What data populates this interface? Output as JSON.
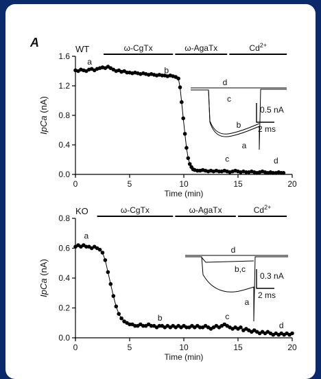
{
  "panel_letter": "A",
  "chart_data": [
    {
      "type": "scatter",
      "genotype": "WT",
      "xlabel": "Time (min)",
      "ylabel_main": "IpCa",
      "ylabel_unit": " (nA)",
      "xlim": [
        0,
        20
      ],
      "ylim": [
        0,
        1.6
      ],
      "xticks": [
        0,
        5,
        10,
        15,
        20
      ],
      "yticks": [
        0.0,
        0.4,
        0.8,
        1.2,
        1.6
      ],
      "ytick_labels": [
        "0.0",
        "0.4",
        "0.8",
        "1.2",
        "1.6"
      ],
      "treatments": [
        {
          "label": "ω-CgTx",
          "start": 2.6,
          "end": 9.0
        },
        {
          "label": "ω-AgaTx",
          "start": 9.2,
          "end": 14.0
        },
        {
          "label": "Cd",
          "sup": "2+",
          "start": 14.2,
          "end": 19.5
        }
      ],
      "annotations": [
        {
          "text": "a",
          "x": 1.3,
          "y": 1.49
        },
        {
          "text": "b",
          "x": 8.4,
          "y": 1.37
        },
        {
          "text": "c",
          "x": 14.0,
          "y": 0.17
        },
        {
          "text": "d",
          "x": 18.5,
          "y": 0.15
        }
      ],
      "x": [
        0,
        0.25,
        0.5,
        0.75,
        1,
        1.25,
        1.5,
        1.75,
        2,
        2.25,
        2.5,
        2.75,
        3,
        3.25,
        3.5,
        3.75,
        4,
        4.25,
        4.5,
        4.75,
        5,
        5.25,
        5.5,
        5.75,
        6,
        6.25,
        6.5,
        6.75,
        7,
        7.25,
        7.5,
        7.75,
        8,
        8.25,
        8.5,
        8.75,
        9,
        9.25,
        9.5,
        9.65,
        9.8,
        9.95,
        10.1,
        10.25,
        10.4,
        10.55,
        10.7,
        10.85,
        11,
        11.25,
        11.5,
        11.75,
        12,
        12.25,
        12.5,
        12.75,
        13,
        13.25,
        13.5,
        13.75,
        14,
        14.25,
        14.5,
        14.75,
        15,
        15.25,
        15.5,
        15.75,
        16,
        16.25,
        16.5,
        16.75,
        17,
        17.25,
        17.5,
        17.75,
        18,
        18.25,
        18.5,
        18.75,
        19,
        19.2
      ],
      "y": [
        1.41,
        1.4,
        1.42,
        1.41,
        1.4,
        1.42,
        1.43,
        1.41,
        1.43,
        1.44,
        1.45,
        1.44,
        1.46,
        1.44,
        1.42,
        1.4,
        1.41,
        1.39,
        1.4,
        1.38,
        1.38,
        1.37,
        1.38,
        1.37,
        1.36,
        1.37,
        1.36,
        1.35,
        1.36,
        1.35,
        1.34,
        1.35,
        1.34,
        1.34,
        1.33,
        1.34,
        1.33,
        1.32,
        1.3,
        1.18,
        0.98,
        0.76,
        0.55,
        0.36,
        0.22,
        0.14,
        0.1,
        0.07,
        0.06,
        0.05,
        0.05,
        0.06,
        0.05,
        0.04,
        0.05,
        0.04,
        0.05,
        0.04,
        0.04,
        0.05,
        0.04,
        0.03,
        0.04,
        0.05,
        0.04,
        0.03,
        0.04,
        0.03,
        0.03,
        0.04,
        0.03,
        0.02,
        0.03,
        0.04,
        0.03,
        0.02,
        0.03,
        0.02,
        0.02,
        0.03,
        0.02,
        0.02
      ],
      "inset": {
        "labels": [
          "d",
          "c",
          "b",
          "a"
        ],
        "scale_y": "0.5 nA",
        "scale_x": "2 ms"
      }
    },
    {
      "type": "scatter",
      "genotype": "KO",
      "xlabel": "Time (min)",
      "ylabel_main": "IpCa",
      "ylabel_unit": " (nA)",
      "xlim": [
        0,
        20
      ],
      "ylim": [
        0,
        0.8
      ],
      "xticks": [
        0,
        5,
        10,
        15,
        20
      ],
      "yticks": [
        0.0,
        0.2,
        0.4,
        0.6,
        0.8
      ],
      "ytick_labels": [
        "0.0",
        "0.2",
        "0.4",
        "0.6",
        "0.8"
      ],
      "treatments": [
        {
          "label": "ω-CgTx",
          "start": 2.0,
          "end": 9.0
        },
        {
          "label": "ω-AgaTx",
          "start": 9.2,
          "end": 14.8
        },
        {
          "label": "Cd",
          "sup": "2+",
          "start": 15.0,
          "end": 19.5
        }
      ],
      "annotations": [
        {
          "text": "a",
          "x": 1.0,
          "y": 0.665
        },
        {
          "text": "b",
          "x": 7.8,
          "y": 0.115
        },
        {
          "text": "c",
          "x": 14.0,
          "y": 0.125
        },
        {
          "text": "d",
          "x": 19.0,
          "y": 0.065
        }
      ],
      "x": [
        0,
        0.25,
        0.5,
        0.75,
        1,
        1.25,
        1.5,
        1.75,
        2,
        2.25,
        2.5,
        2.75,
        3,
        3.25,
        3.5,
        3.75,
        4,
        4.25,
        4.5,
        4.75,
        5,
        5.25,
        5.5,
        5.75,
        6,
        6.25,
        6.5,
        6.75,
        7,
        7.25,
        7.5,
        7.75,
        8,
        8.25,
        8.5,
        8.75,
        9,
        9.25,
        9.5,
        9.75,
        10,
        10.25,
        10.5,
        10.75,
        11,
        11.25,
        11.5,
        11.75,
        12,
        12.25,
        12.5,
        12.75,
        13,
        13.25,
        13.5,
        13.75,
        14,
        14.25,
        14.5,
        14.75,
        15,
        15.25,
        15.5,
        15.75,
        16,
        16.25,
        16.5,
        16.75,
        17,
        17.25,
        17.5,
        17.75,
        18,
        18.25,
        18.5,
        18.75,
        19,
        19.25,
        19.5,
        19.75,
        20
      ],
      "y": [
        0.61,
        0.62,
        0.61,
        0.62,
        0.61,
        0.61,
        0.6,
        0.61,
        0.6,
        0.59,
        0.57,
        0.52,
        0.44,
        0.36,
        0.28,
        0.21,
        0.16,
        0.13,
        0.11,
        0.1,
        0.09,
        0.09,
        0.08,
        0.08,
        0.09,
        0.08,
        0.08,
        0.09,
        0.08,
        0.08,
        0.07,
        0.08,
        0.08,
        0.07,
        0.08,
        0.07,
        0.08,
        0.07,
        0.08,
        0.07,
        0.08,
        0.07,
        0.07,
        0.08,
        0.07,
        0.08,
        0.07,
        0.07,
        0.08,
        0.07,
        0.06,
        0.07,
        0.08,
        0.07,
        0.08,
        0.09,
        0.08,
        0.07,
        0.06,
        0.07,
        0.06,
        0.07,
        0.05,
        0.06,
        0.05,
        0.04,
        0.05,
        0.04,
        0.03,
        0.04,
        0.03,
        0.04,
        0.03,
        0.02,
        0.03,
        0.02,
        0.03,
        0.02,
        0.03,
        0.02,
        0.03
      ],
      "inset": {
        "labels": [
          "d",
          "b,c",
          "a"
        ],
        "scale_y": "0.3 nA",
        "scale_x": "2 ms"
      }
    }
  ]
}
